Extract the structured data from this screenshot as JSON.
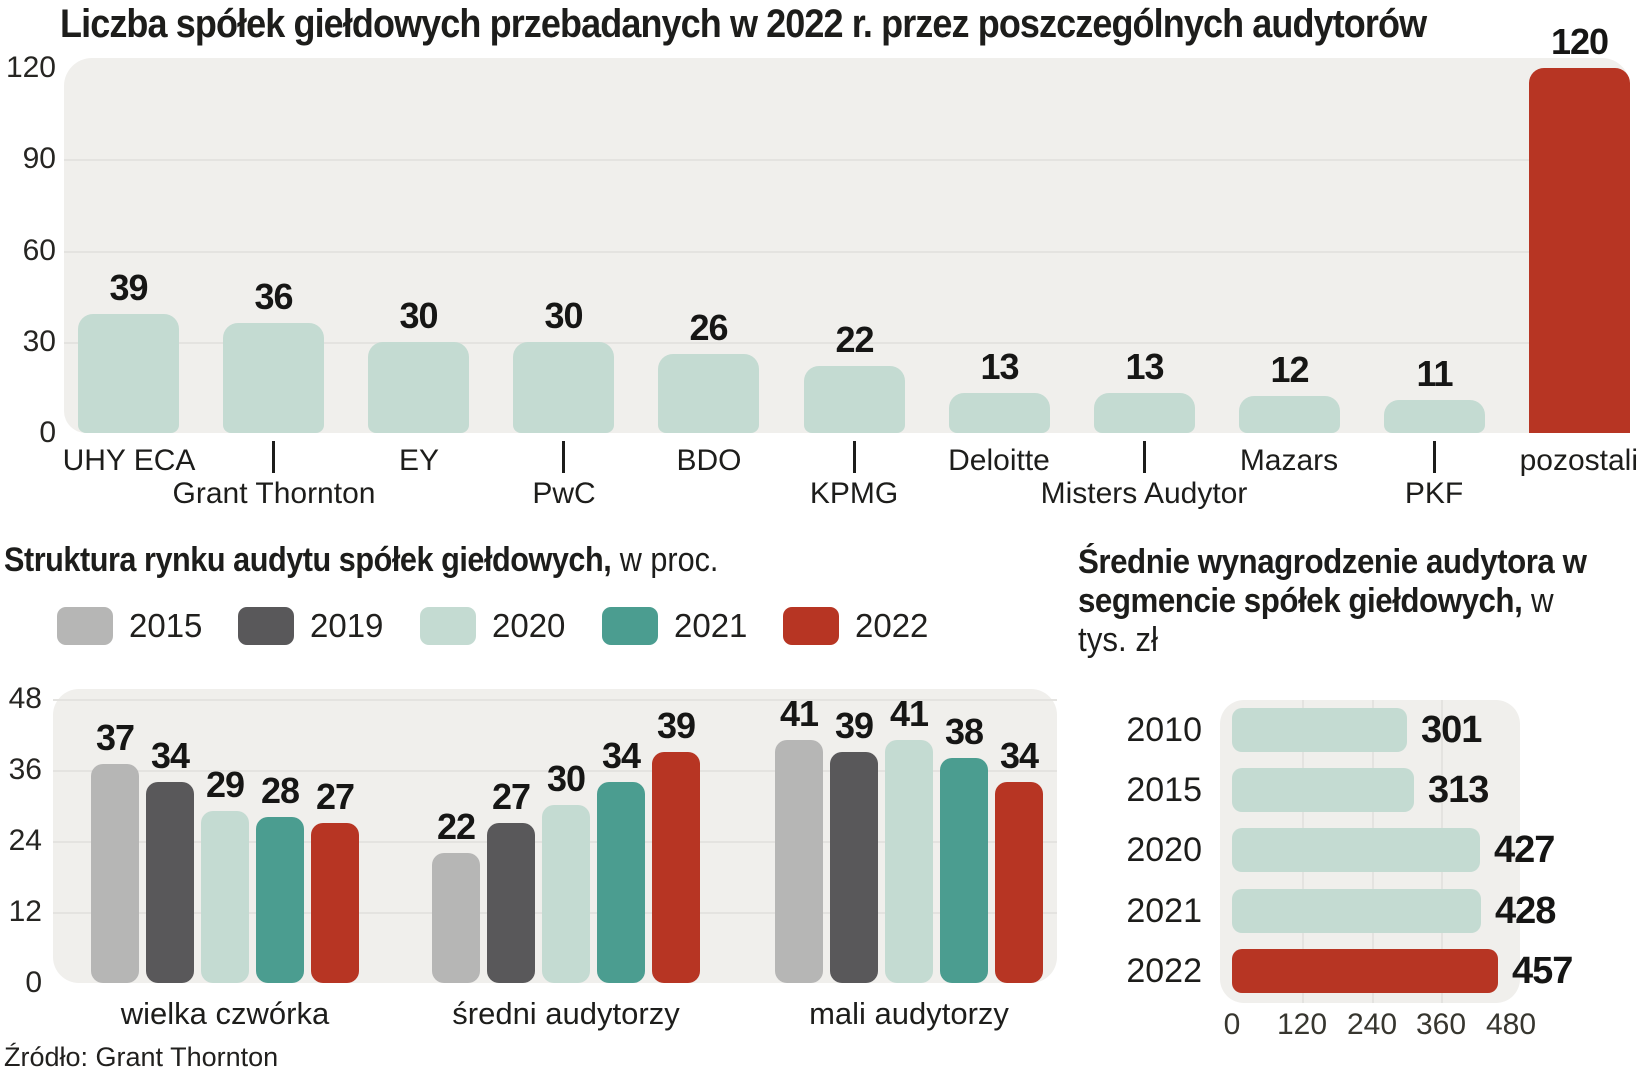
{
  "page": {
    "source_note": "Źródło: Grant Thornton",
    "background": "#ffffff"
  },
  "colors": {
    "mint": "#c4dbd2",
    "teal": "#4b9d90",
    "red": "#b73523",
    "gray_2015": "#b6b6b5",
    "dark_gray_2019": "#59585a",
    "panel_bg": "#f0efec",
    "gridline": "#e4e3e0",
    "text": "#1d1d1b"
  },
  "chart_data": [
    {
      "type": "bar",
      "title": "Liczba spółek giełdowych przebadanych w 2022 r. przez poszczególnych audytorów",
      "categories": [
        "UHY ECA",
        "Grant Thornton",
        "EY",
        "PwC",
        "BDO",
        "KPMG",
        "Deloitte",
        "Misters Audytor",
        "Mazars",
        "PKF",
        "pozostali"
      ],
      "values": [
        39,
        36,
        30,
        30,
        26,
        22,
        13,
        13,
        12,
        11,
        120
      ],
      "highlight_category": "pozostali",
      "ylim": [
        0,
        120
      ],
      "yticks": [
        0,
        30,
        60,
        90,
        120
      ],
      "grid": true,
      "legend_position": "none"
    },
    {
      "type": "bar",
      "title_bold": "Struktura rynku audytu spółek giełdowych,",
      "title_regular": "w proc.",
      "categories": [
        "wielka czwórka",
        "średni audytorzy",
        "mali audytorzy"
      ],
      "series": [
        {
          "name": "2015",
          "color_key": "gray_2015",
          "values": [
            37,
            22,
            41
          ]
        },
        {
          "name": "2019",
          "color_key": "dark_gray_2019",
          "values": [
            34,
            27,
            39
          ]
        },
        {
          "name": "2020",
          "color_key": "mint",
          "values": [
            29,
            30,
            41
          ]
        },
        {
          "name": "2021",
          "color_key": "teal",
          "values": [
            28,
            34,
            38
          ]
        },
        {
          "name": "2022",
          "color_key": "red",
          "values": [
            27,
            39,
            34
          ]
        }
      ],
      "ylim": [
        0,
        48
      ],
      "yticks": [
        0,
        12,
        24,
        36,
        48
      ],
      "grid": true,
      "legend_position": "top"
    },
    {
      "type": "bar",
      "orientation": "horizontal",
      "title_bold": "Średnie wynagrodzenie audytora w segmencie spółek giełdowych,",
      "title_regular": "w tys. zł",
      "categories": [
        "2010",
        "2015",
        "2020",
        "2021",
        "2022"
      ],
      "values": [
        301,
        313,
        427,
        428,
        457
      ],
      "highlight_category": "2022",
      "xlim": [
        0,
        480
      ],
      "xticks": [
        0,
        120,
        240,
        360,
        480
      ],
      "grid": true
    }
  ]
}
